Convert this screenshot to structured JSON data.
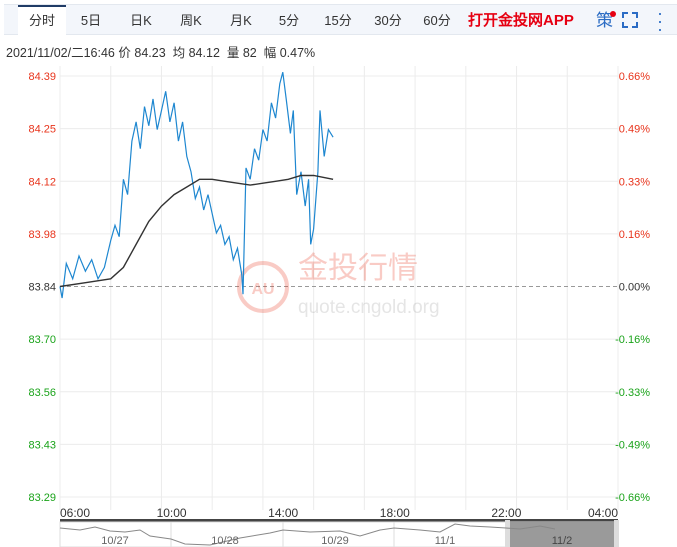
{
  "tabs": [
    {
      "label": "分时",
      "active": true
    },
    {
      "label": "5日"
    },
    {
      "label": "日K"
    },
    {
      "label": "周K"
    },
    {
      "label": "月K"
    },
    {
      "label": "5分"
    },
    {
      "label": "15分"
    },
    {
      "label": "30分"
    },
    {
      "label": "60分"
    }
  ],
  "app_link": "打开金投网APP",
  "strategy_label": "策",
  "icons": [
    "fullscreen-icon",
    "more-vertical-icon",
    "notification-dot"
  ],
  "info": {
    "datetime": "2021/11/02/二16:46",
    "price_label": "价",
    "price": "84.23",
    "avg_label": "均",
    "avg": "84.12",
    "vol_label": "量",
    "vol": "82",
    "chg_label": "幅",
    "chg": "0.47%"
  },
  "watermark": {
    "title": "金投行情",
    "url": "quote.cngold.org"
  },
  "colors": {
    "up": "#e8341c",
    "down": "#1aa31a",
    "price_line": "#1e87d0",
    "avg_line": "#333333",
    "accent": "#e60012"
  },
  "chart_data": {
    "type": "line",
    "y_ticks": [
      "84.39",
      "84.25",
      "84.12",
      "83.98",
      "83.84",
      "83.70",
      "83.56",
      "83.43",
      "83.29"
    ],
    "pct_ticks": [
      "0.66%",
      "0.49%",
      "0.33%",
      "0.16%",
      "0.00%",
      "-0.16%",
      "-0.33%",
      "-0.49%",
      "-0.66%"
    ],
    "x_ticks": [
      "06:00",
      "10:00",
      "14:00",
      "18:00",
      "22:00",
      "04:00"
    ],
    "ylim": [
      83.29,
      84.39
    ],
    "prev_close": 83.84,
    "time_range": [
      "06:00",
      "04:00"
    ],
    "series": [
      {
        "key": "price",
        "times": [
          "06:00",
          "06:05",
          "06:15",
          "06:30",
          "06:45",
          "07:00",
          "07:15",
          "07:30",
          "07:45",
          "08:00",
          "08:10",
          "08:20",
          "08:30",
          "08:40",
          "08:50",
          "09:00",
          "09:10",
          "09:20",
          "09:30",
          "09:40",
          "09:50",
          "10:00",
          "10:10",
          "10:20",
          "10:30",
          "10:40",
          "10:50",
          "11:00",
          "11:10",
          "11:20",
          "11:30",
          "11:40",
          "11:50",
          "12:00",
          "12:10",
          "12:20",
          "12:30",
          "12:40",
          "12:50",
          "13:00",
          "13:10",
          "13:13",
          "13:20",
          "13:30",
          "13:40",
          "13:50",
          "14:00",
          "14:10",
          "14:20",
          "14:30",
          "14:40",
          "14:47",
          "14:55",
          "15:05",
          "15:12",
          "15:20",
          "15:30",
          "15:40",
          "15:48",
          "15:53",
          "16:00",
          "16:10",
          "16:15",
          "16:25",
          "16:35",
          "16:46"
        ],
        "values": [
          83.84,
          83.81,
          83.9,
          83.86,
          83.92,
          83.88,
          83.91,
          83.86,
          83.89,
          83.96,
          84.0,
          83.97,
          84.12,
          84.08,
          84.22,
          84.27,
          84.2,
          84.31,
          84.26,
          84.33,
          84.25,
          84.3,
          84.35,
          84.27,
          84.32,
          84.22,
          84.27,
          84.18,
          84.14,
          84.07,
          84.1,
          84.04,
          84.08,
          84.03,
          83.98,
          84.0,
          83.95,
          83.97,
          83.91,
          83.94,
          83.87,
          83.82,
          84.15,
          84.12,
          84.2,
          84.17,
          84.25,
          84.22,
          84.32,
          84.28,
          84.37,
          84.4,
          84.33,
          84.24,
          84.3,
          84.08,
          84.14,
          84.05,
          84.12,
          83.95,
          83.99,
          84.14,
          84.3,
          84.18,
          84.25,
          84.23
        ]
      },
      {
        "key": "avg",
        "times": [
          "06:00",
          "07:00",
          "08:00",
          "08:30",
          "09:00",
          "09:30",
          "10:00",
          "10:30",
          "11:00",
          "11:30",
          "12:00",
          "12:30",
          "13:00",
          "13:30",
          "14:00",
          "14:30",
          "15:00",
          "15:30",
          "16:00",
          "16:46"
        ],
        "values": [
          83.84,
          83.85,
          83.86,
          83.89,
          83.95,
          84.01,
          84.05,
          84.08,
          84.1,
          84.12,
          84.12,
          84.115,
          84.11,
          84.105,
          84.11,
          84.115,
          84.12,
          84.13,
          84.13,
          84.12
        ]
      }
    ],
    "navigator": {
      "dates": [
        "10/27",
        "10/28",
        "10/29",
        "11/1",
        "11/2"
      ],
      "selected": "11/2"
    }
  }
}
